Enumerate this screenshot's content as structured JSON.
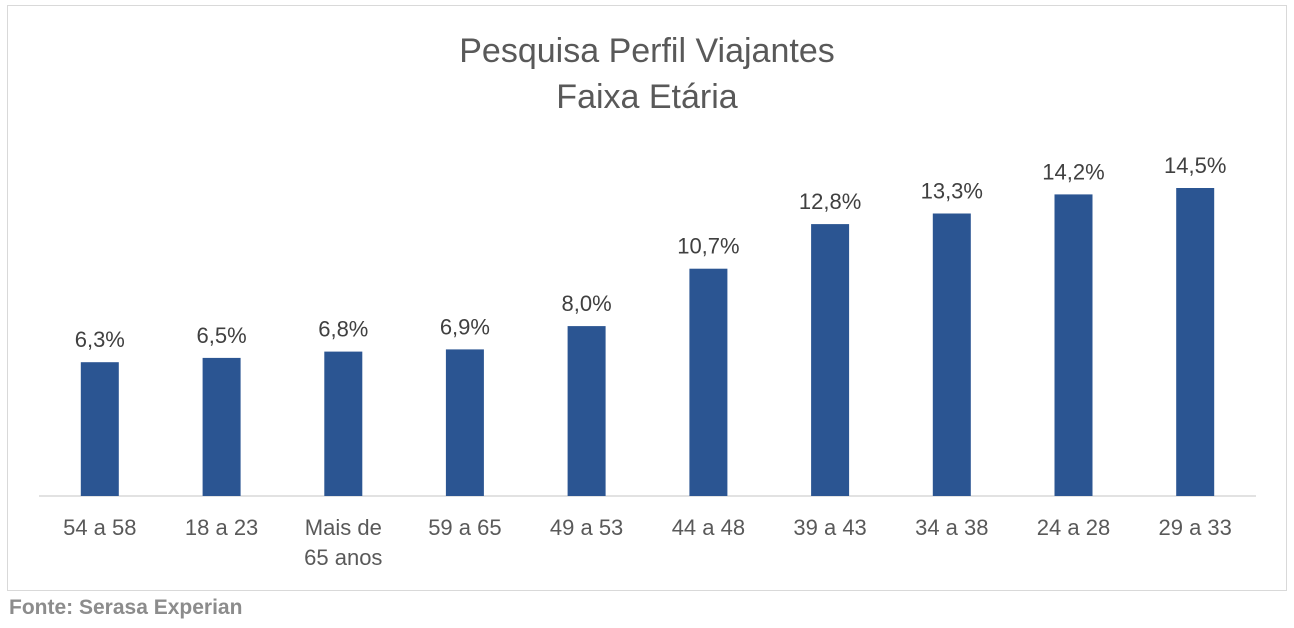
{
  "chart_data": {
    "type": "bar",
    "title": [
      "Pesquisa Perfil Viajantes",
      "Faixa Etária"
    ],
    "xlabel": "",
    "ylabel": "",
    "categories": [
      [
        "54 a 58"
      ],
      [
        "18 a 23"
      ],
      [
        "Mais de",
        "65 anos"
      ],
      [
        "59 a 65"
      ],
      [
        "49 a 53"
      ],
      [
        "44 a 48"
      ],
      [
        "39 a 43"
      ],
      [
        "34 a 38"
      ],
      [
        "24 a 28"
      ],
      [
        "29 a 33"
      ]
    ],
    "values": [
      6.3,
      6.5,
      6.8,
      6.9,
      8.0,
      10.7,
      12.8,
      13.3,
      14.2,
      14.5
    ],
    "data_labels": [
      "6,3%",
      "6,5%",
      "6,8%",
      "6,9%",
      "8,0%",
      "10,7%",
      "12,8%",
      "13,3%",
      "14,2%",
      "14,5%"
    ],
    "ylim": [
      0,
      14.5
    ],
    "unit": "%",
    "grid": false,
    "legend": "none",
    "colors": {
      "bar": "#2B5592",
      "axis": "#d9d9d9",
      "title": "#595959",
      "data_label": "#404040",
      "tick_label": "#595959"
    }
  },
  "footer": {
    "source": "Fonte: Serasa Experian"
  }
}
